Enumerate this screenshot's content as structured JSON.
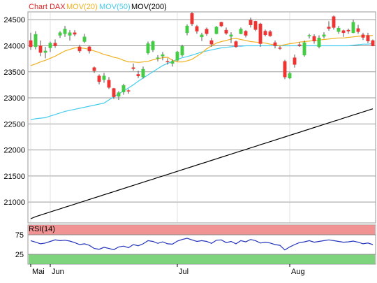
{
  "legend": {
    "title": "Chart DAX",
    "mov20": "MOV(20)",
    "mov50": "MOV(50)",
    "mov200": "MOV(200)"
  },
  "rsi_label": "RSI(14)",
  "colors": {
    "up": "#44cc44",
    "down": "#ee3333",
    "mov20": "#f0b020",
    "mov50": "#44ccee",
    "mov200": "#000000",
    "rsi_line": "#2233bb",
    "overbought": "#f08080",
    "oversold": "#66cc66",
    "title_red": "#dd2222"
  },
  "chart_data": [
    {
      "type": "candlestick",
      "title": "Chart DAX",
      "ylim": [
        20600,
        24650
      ],
      "y_ticks": [
        21000,
        21500,
        22000,
        22500,
        23000,
        23500,
        24000,
        24500
      ],
      "x_labels": [
        {
          "label": "Mai",
          "index": 0
        },
        {
          "label": "Jun",
          "index": 4
        },
        {
          "label": "Jul",
          "index": 30
        },
        {
          "label": "Aug",
          "index": 53
        }
      ],
      "candles": [
        [
          24100,
          24250,
          23920,
          23980
        ],
        [
          23980,
          24280,
          23930,
          24220
        ],
        [
          24000,
          24100,
          23800,
          23870
        ],
        [
          23870,
          23980,
          23760,
          23900
        ],
        [
          23960,
          24080,
          23880,
          24050
        ],
        [
          24050,
          24120,
          23960,
          24000
        ],
        [
          24200,
          24280,
          24150,
          24250
        ],
        [
          24230,
          24380,
          24170,
          24320
        ],
        [
          24200,
          24300,
          24100,
          24250
        ],
        [
          24250,
          24300,
          24180,
          24220
        ],
        [
          23980,
          24020,
          23860,
          23900
        ],
        [
          24080,
          24230,
          24050,
          24170
        ],
        [
          23980,
          24000,
          23850,
          23900
        ],
        [
          23580,
          23600,
          23480,
          23520
        ],
        [
          23420,
          23450,
          23260,
          23310
        ],
        [
          23350,
          23480,
          23290,
          23420
        ],
        [
          23340,
          23400,
          23170,
          23200
        ],
        [
          23180,
          23190,
          22980,
          23020
        ],
        [
          23030,
          23130,
          22960,
          23100
        ],
        [
          23110,
          23270,
          23060,
          23240
        ],
        [
          23140,
          23170,
          23080,
          23130
        ],
        [
          23580,
          23660,
          23520,
          23560
        ],
        [
          23450,
          23520,
          23380,
          23420
        ],
        [
          23400,
          23600,
          23370,
          23550
        ],
        [
          23860,
          24080,
          23830,
          24040
        ],
        [
          23920,
          24100,
          23880,
          24080
        ],
        [
          23760,
          23820,
          23700,
          23770
        ],
        [
          23800,
          23880,
          23720,
          23830
        ],
        [
          23700,
          23760,
          23640,
          23690
        ],
        [
          23660,
          23740,
          23600,
          23700
        ],
        [
          23720,
          23900,
          23700,
          23880
        ],
        [
          23820,
          24020,
          23790,
          23990
        ],
        [
          24250,
          24410,
          24200,
          24380
        ],
        [
          24620,
          24650,
          24380,
          24420
        ],
        [
          24370,
          24400,
          24230,
          24280
        ],
        [
          24170,
          24250,
          24090,
          24210
        ],
        [
          24320,
          24350,
          24190,
          24230
        ],
        [
          24100,
          24150,
          23980,
          24030
        ],
        [
          24230,
          24380,
          24220,
          24360
        ],
        [
          24450,
          24460,
          24360,
          24380
        ],
        [
          24300,
          24350,
          24210,
          24240
        ],
        [
          24180,
          24260,
          24050,
          24210
        ],
        [
          24080,
          24100,
          23960,
          23980
        ],
        [
          24230,
          24350,
          24220,
          24320
        ],
        [
          24280,
          24300,
          24160,
          24200
        ],
        [
          24490,
          24540,
          24350,
          24400
        ],
        [
          24470,
          24480,
          24280,
          24310
        ],
        [
          24420,
          24440,
          23980,
          24040
        ],
        [
          24280,
          24310,
          24180,
          24210
        ],
        [
          24270,
          24300,
          24170,
          24190
        ],
        [
          24060,
          24100,
          23950,
          24000
        ],
        [
          23960,
          24000,
          23920,
          23950
        ],
        [
          23700,
          23730,
          23360,
          23400
        ],
        [
          23380,
          23500,
          23360,
          23470
        ],
        [
          23770,
          23830,
          23580,
          23640
        ],
        [
          24020,
          24070,
          23980,
          24000
        ],
        [
          23820,
          24100,
          23790,
          24060
        ],
        [
          24190,
          24230,
          24140,
          24200
        ],
        [
          24180,
          24220,
          24040,
          24090
        ],
        [
          23980,
          24200,
          23950,
          24150
        ],
        [
          24180,
          24260,
          24140,
          24210
        ],
        [
          24360,
          24470,
          24290,
          24330
        ],
        [
          24560,
          24580,
          24310,
          24350
        ],
        [
          24270,
          24380,
          24230,
          24340
        ],
        [
          24290,
          24310,
          24170,
          24250
        ],
        [
          24300,
          24330,
          24230,
          24280
        ],
        [
          24250,
          24500,
          24240,
          24450
        ],
        [
          24330,
          24400,
          24230,
          24270
        ],
        [
          24210,
          24250,
          24110,
          24160
        ],
        [
          24200,
          24250,
          24050,
          24090
        ],
        [
          24100,
          24120,
          23990,
          24000
        ]
      ],
      "series": [
        {
          "name": "MOV(20)",
          "values": [
            23620,
            23650,
            23690,
            23720,
            23760,
            23800,
            23850,
            23900,
            23930,
            23960,
            23960,
            23950,
            23930,
            23900,
            23870,
            23830,
            23810,
            23780,
            23760,
            23720,
            23690,
            23690,
            23680,
            23690,
            23700,
            23730,
            23750,
            23770,
            23780,
            23720,
            23690,
            23690,
            23710,
            23740,
            23800,
            23860,
            23940,
            24000,
            24050,
            24080,
            24100,
            24130,
            24140,
            24120,
            24100,
            24080,
            24070,
            24060,
            24050,
            24030,
            24020,
            24000,
            24020,
            24040,
            24050,
            24070,
            24080,
            24090,
            24100,
            24110,
            24120,
            24130,
            24140,
            24150,
            24150,
            24160,
            24170,
            24180,
            24190,
            24190,
            24200
          ]
        },
        {
          "name": "MOV(50)",
          "values": [
            22580,
            22600,
            22610,
            22620,
            22650,
            22680,
            22710,
            22740,
            22760,
            22780,
            22800,
            22820,
            22840,
            22860,
            22880,
            22900,
            22960,
            23020,
            23080,
            23130,
            23190,
            23250,
            23320,
            23380,
            23440,
            23500,
            23560,
            23620,
            23660,
            23700,
            23740,
            23770,
            23790,
            23820,
            23850,
            23880,
            23900,
            23920,
            23940,
            23960,
            23970,
            23980,
            23990,
            23990,
            24000,
            24000,
            24000,
            24000,
            24000,
            24000,
            24000,
            24000,
            24000,
            24000,
            24000,
            24000,
            24000,
            24000,
            24000,
            24000,
            24000,
            24000,
            24000,
            24000,
            24000,
            24000,
            24010,
            24020,
            24030,
            24030,
            24040
          ]
        },
        {
          "name": "MOV(200)",
          "values": [
            20680,
            20720,
            20750,
            20780,
            20810,
            20840,
            20870,
            20900,
            20930,
            20960,
            20990,
            21020,
            21050,
            21080,
            21110,
            21140,
            21170,
            21200,
            21230,
            21260,
            21290,
            21320,
            21350,
            21380,
            21410,
            21440,
            21470,
            21500,
            21530,
            21560,
            21590,
            21620,
            21650,
            21680,
            21710,
            21740,
            21770,
            21800,
            21830,
            21860,
            21890,
            21920,
            21950,
            21980,
            22010,
            22040,
            22070,
            22100,
            22130,
            22160,
            22190,
            22220,
            22250,
            22280,
            22310,
            22340,
            22370,
            22400,
            22430,
            22460,
            22490,
            22520,
            22550,
            22580,
            22610,
            22640,
            22670,
            22700,
            22730,
            22760,
            22790
          ]
        }
      ]
    },
    {
      "type": "line",
      "title": "RSI(14)",
      "ylim": [
        0,
        100
      ],
      "y_ticks": [
        25,
        75
      ],
      "bands": [
        {
          "from": 75,
          "to": 100,
          "name": "overbought"
        },
        {
          "from": 0,
          "to": 25,
          "name": "oversold"
        }
      ],
      "series": [
        {
          "name": "RSI(14)",
          "values": [
            60,
            56,
            52,
            54,
            58,
            62,
            60,
            61,
            59,
            55,
            50,
            52,
            48,
            40,
            38,
            43,
            40,
            37,
            44,
            46,
            42,
            50,
            47,
            52,
            60,
            58,
            53,
            57,
            52,
            51,
            59,
            63,
            66,
            62,
            58,
            60,
            58,
            53,
            61,
            62,
            55,
            58,
            52,
            60,
            57,
            63,
            60,
            54,
            56,
            54,
            50,
            48,
            36,
            44,
            50,
            55,
            57,
            60,
            56,
            58,
            60,
            62,
            60,
            58,
            56,
            57,
            59,
            56,
            52,
            54,
            50
          ]
        }
      ]
    }
  ]
}
